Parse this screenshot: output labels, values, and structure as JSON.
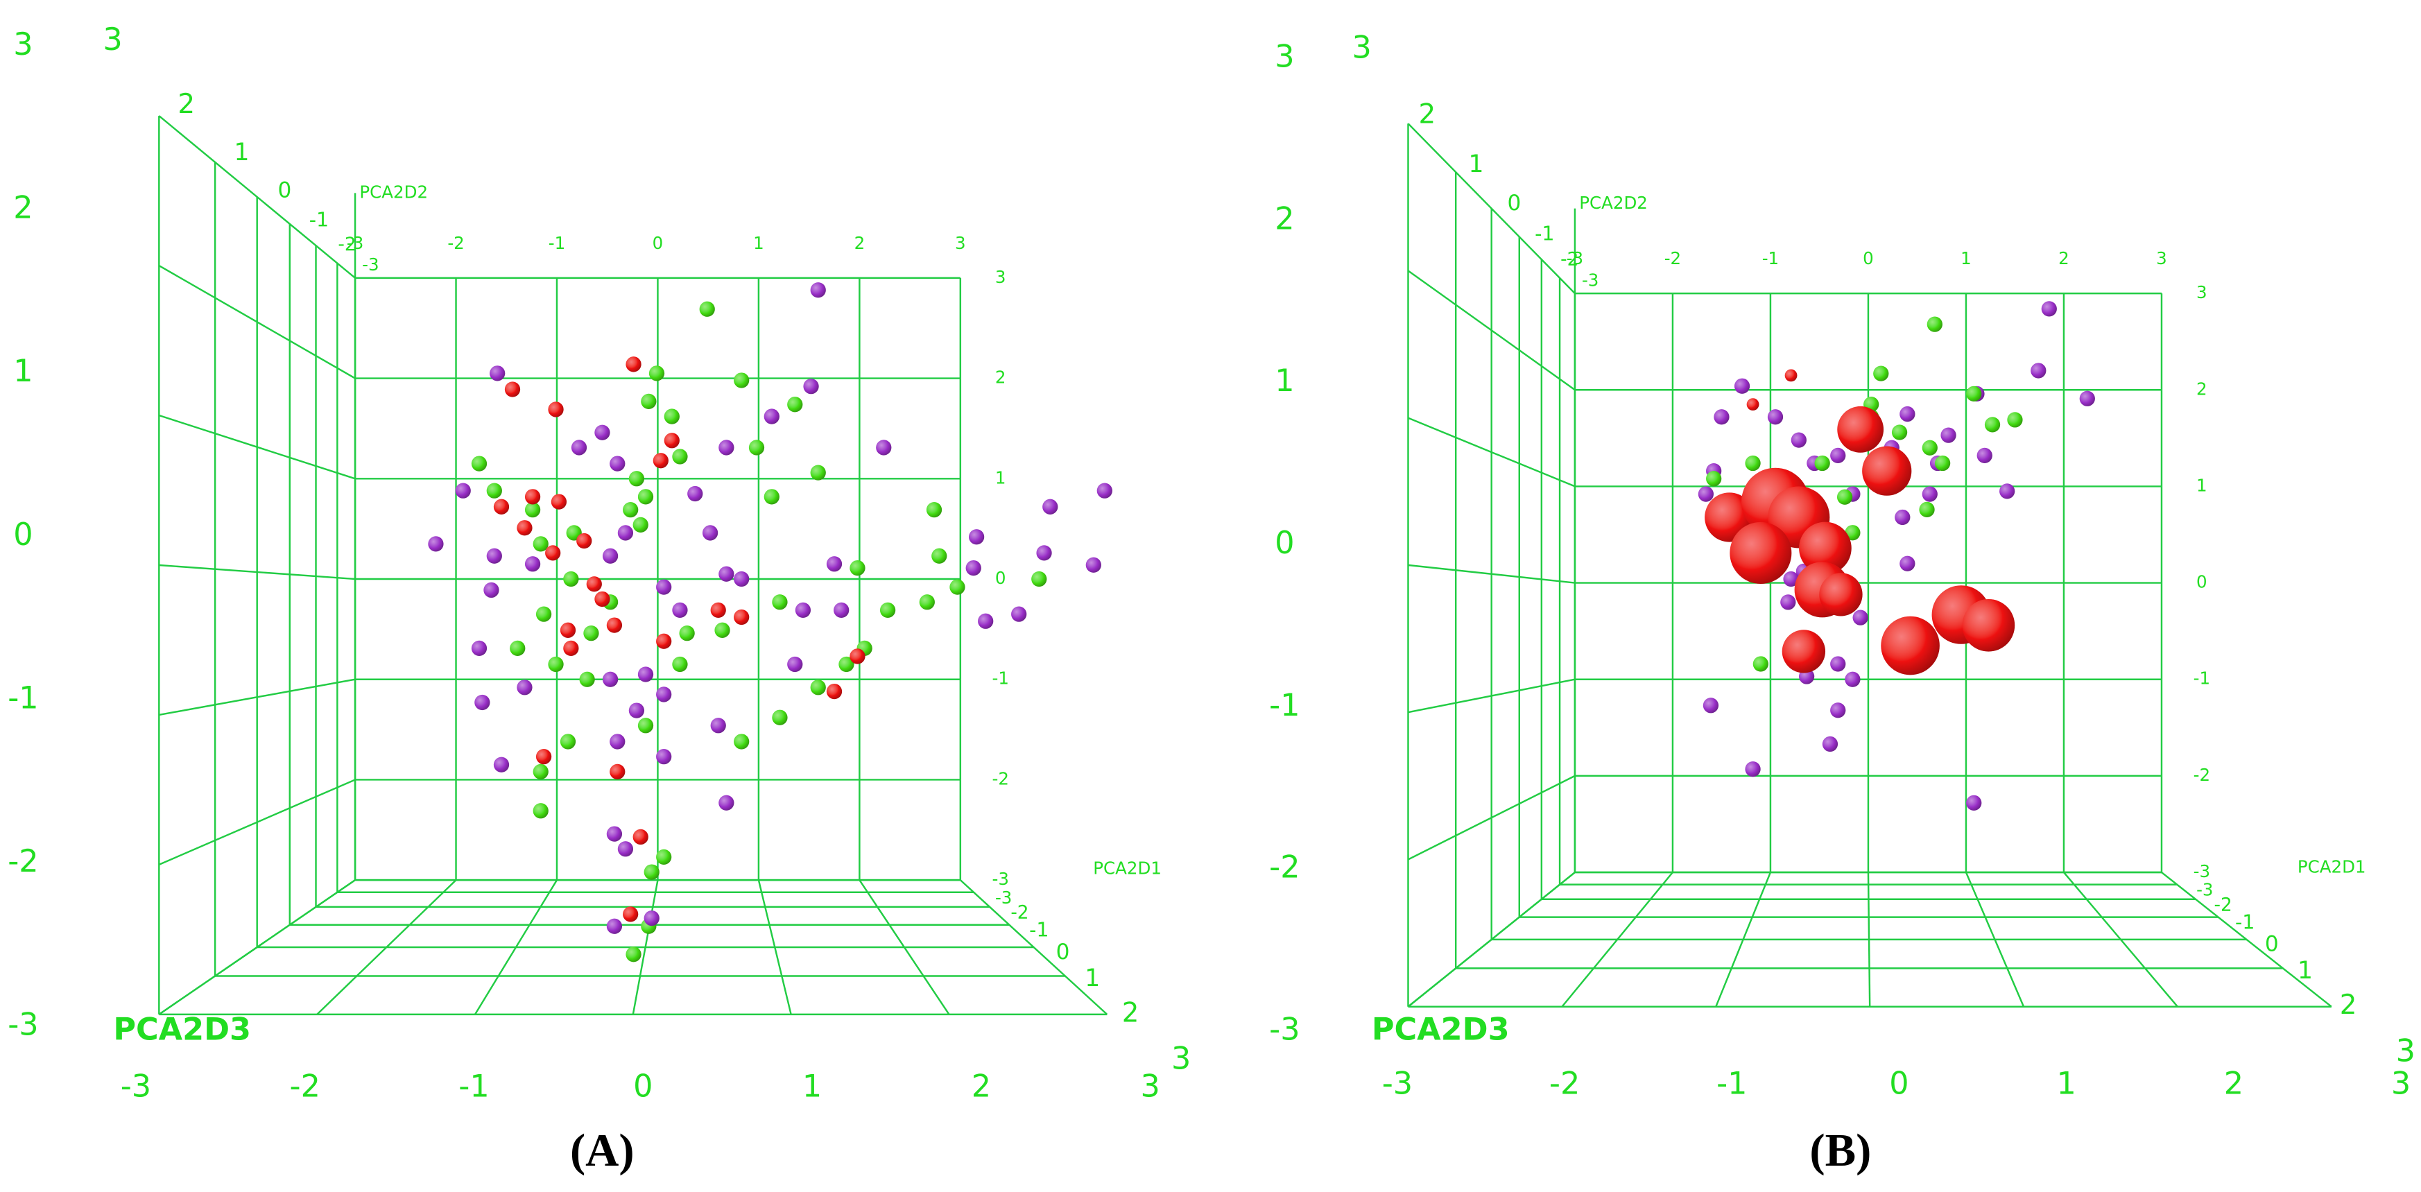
{
  "chart_data": [
    {
      "type": "scatter3d",
      "label": "(A)",
      "xlabel": "PCA2D1",
      "ylabel": "PCA2D2",
      "zlabel": "PCA2D3",
      "xlim": [
        -3,
        3
      ],
      "ylim": [
        -3,
        3
      ],
      "zlim": [
        -3,
        3
      ],
      "xticks": [
        -3,
        -2,
        -1,
        0,
        1,
        2,
        3
      ],
      "yticks": [
        -3,
        -2,
        -1,
        0,
        1,
        2,
        3
      ],
      "zticks": [
        -3,
        -2,
        -1,
        0,
        1,
        2,
        3
      ],
      "grid": true,
      "series": [
        {
          "color": "#44dd11",
          "x": [
            0.49,
            -0.01,
            0.83,
            1.36,
            -0.09,
            0.14,
            0.22,
            0.98,
            1.59,
            1.13,
            -1.77,
            -1.62,
            -1.24,
            -1.16,
            -0.83,
            -0.86,
            -0.47,
            -1.13,
            -1.39,
            -1.01,
            -0.27,
            -0.21,
            -0.12,
            2.74,
            2.79,
            2.97,
            1.98,
            1.21,
            2.28,
            2.67,
            3.78,
            2.05,
            1.87,
            1.21,
            0.64,
            0.29,
            0.22,
            -0.7,
            -0.89,
            -1.16,
            -1.16,
            -0.12,
            0.06,
            -0.24,
            -0.09,
            -0.06,
            -0.17,
            0.83,
            1.59,
            -0.66
          ],
          "y": [
            2.69,
            2.05,
            1.98,
            1.74,
            1.77,
            1.62,
            1.22,
            1.31,
            1.06,
            0.82,
            1.15,
            0.88,
            0.69,
            0.35,
            0.46,
            0.0,
            -0.23,
            -0.35,
            -0.69,
            -0.85,
            0.69,
            1.0,
            0.82,
            0.69,
            0.23,
            -0.08,
            0.11,
            -0.23,
            -0.31,
            -0.23,
            0.0,
            -0.69,
            -0.85,
            -1.38,
            -0.51,
            -0.54,
            -0.85,
            -1.0,
            -1.62,
            -1.92,
            -2.31,
            -1.46,
            -2.77,
            -3.74,
            -3.46,
            -2.92,
            0.54,
            -1.62,
            -1.08,
            -0.54
          ]
        },
        {
          "color": "#9a2ec8",
          "x": [
            1.59,
            1.52,
            -1.59,
            -1.93,
            -2.2,
            -0.55,
            -0.4,
            -0.78,
            0.37,
            0.52,
            0.68,
            1.13,
            2.24,
            3.89,
            4.43,
            3.16,
            3.83,
            4.32,
            3.25,
            3.58,
            1.75,
            1.82,
            1.36,
            1.44,
            0.68,
            0.22,
            0.06,
            -1.62,
            -1.65,
            -1.77,
            -1.74,
            -1.32,
            -0.47,
            -0.21,
            -0.4,
            0.06,
            0.6,
            0.68,
            -0.43,
            -0.32,
            -0.43,
            -0.06,
            -1.55,
            0.06,
            -0.12,
            -1.24,
            -0.47,
            -0.32,
            0.83,
            3.13
          ],
          "y": [
            2.88,
            1.92,
            2.05,
            0.88,
            0.35,
            1.46,
            1.15,
            1.31,
            0.85,
            0.46,
            1.31,
            1.62,
            1.31,
            0.72,
            0.88,
            0.42,
            0.26,
            0.14,
            -0.42,
            -0.35,
            0.15,
            -0.31,
            -0.85,
            -0.31,
            0.05,
            -0.31,
            -0.08,
            0.23,
            -0.11,
            -0.69,
            -1.23,
            -1.08,
            -1.0,
            -1.31,
            -1.62,
            -1.77,
            -1.46,
            -2.23,
            -2.54,
            -2.69,
            -3.46,
            -3.38,
            -1.85,
            -1.15,
            -0.95,
            0.15,
            0.23,
            0.46,
            0.0,
            0.11
          ]
        },
        {
          "color": "#ee1111",
          "x": [
            -0.24,
            -1.44,
            -1.01,
            0.03,
            -1.24,
            -0.98,
            -1.55,
            -1.32,
            -1.04,
            -0.73,
            -0.63,
            -0.55,
            -0.43,
            -0.89,
            -0.86,
            0.06,
            0.6,
            0.83,
            1.75,
            1.98,
            -1.13,
            -0.4,
            -0.17,
            -0.27,
            0.14
          ],
          "y": [
            2.14,
            1.89,
            1.69,
            1.18,
            0.82,
            0.77,
            0.72,
            0.51,
            0.26,
            0.38,
            -0.05,
            -0.2,
            -0.46,
            -0.51,
            -0.69,
            -0.62,
            -0.31,
            -0.38,
            -1.12,
            -0.77,
            -1.77,
            -1.92,
            -2.57,
            -3.34,
            1.38
          ]
        }
      ]
    },
    {
      "type": "scatter3d",
      "label": "(B)",
      "xlabel": "PCA2D1",
      "ylabel": "PCA2D2",
      "zlabel": "PCA2D3",
      "xlim": [
        -3,
        3
      ],
      "ylim": [
        -3,
        3
      ],
      "zlim": [
        -3,
        3
      ],
      "xticks": [
        -3,
        -2,
        -1,
        0,
        1,
        2,
        3
      ],
      "yticks": [
        -3,
        -2,
        -1,
        0,
        1,
        2,
        3
      ],
      "zticks": [
        -3,
        -2,
        -1,
        0,
        1,
        2,
        3
      ],
      "grid": true,
      "series": [
        {
          "color": "#9a2ec8",
          "x": [
            1.85,
            2.24,
            1.74,
            1.11,
            0.82,
            0.4,
            0.71,
            1.19,
            1.42,
            0.35,
            0.4,
            -1.29,
            -1.5,
            -1.58,
            -1.66,
            -0.95,
            -0.71,
            -0.55,
            -0.31,
            -0.16,
            -0.31,
            -0.16,
            -0.31,
            -0.63,
            -1.18,
            -1.61,
            -0.39,
            1.08,
            -0.66,
            -0.79,
            -0.82,
            -0.08,
            0.63,
            0.24
          ],
          "y": [
            2.84,
            1.91,
            2.2,
            1.96,
            1.53,
            1.75,
            1.24,
            1.32,
            0.95,
            0.68,
            0.2,
            2.04,
            1.72,
            1.16,
            0.92,
            1.72,
            1.48,
            1.24,
            1.32,
            0.92,
            -0.84,
            -1.0,
            -1.32,
            -0.97,
            -1.93,
            -1.27,
            -1.67,
            -2.28,
            0.12,
            0.04,
            -0.2,
            -0.36,
            0.92,
            1.4
          ]
        },
        {
          "color": "#44dd11",
          "x": [
            0.68,
            0.13,
            1.08,
            1.5,
            0.03,
            0.63,
            0.76,
            -0.47,
            -1.58,
            -1.18,
            -0.24,
            0.6,
            -0.16,
            0.32,
            -1.1,
            -0.55,
            -1.26,
            1.27,
            0.03
          ],
          "y": [
            2.68,
            2.17,
            1.96,
            1.69,
            1.72,
            1.4,
            1.24,
            1.24,
            1.08,
            1.24,
            0.89,
            0.76,
            0.52,
            1.56,
            -0.84,
            -0.71,
            0.28,
            1.64,
            1.85
          ]
        },
        {
          "color": "#ee1111",
          "x": [
            -0.08,
            0.19,
            -1.42,
            -0.95,
            -0.71,
            -1.1,
            -0.44,
            -0.47,
            -0.28,
            -0.66,
            0.43,
            0.95,
            1.23,
            -0.79,
            -1.18
          ],
          "y": [
            1.59,
            1.16,
            0.68,
            0.84,
            0.68,
            0.31,
            0.36,
            -0.07,
            -0.12,
            -0.71,
            -0.65,
            -0.33,
            -0.44,
            2.15,
            1.85
          ],
          "sizes": [
            15,
            16,
            16,
            22,
            20,
            20,
            17,
            18,
            14,
            14,
            19,
            19,
            17,
            4,
            4
          ]
        }
      ]
    }
  ]
}
